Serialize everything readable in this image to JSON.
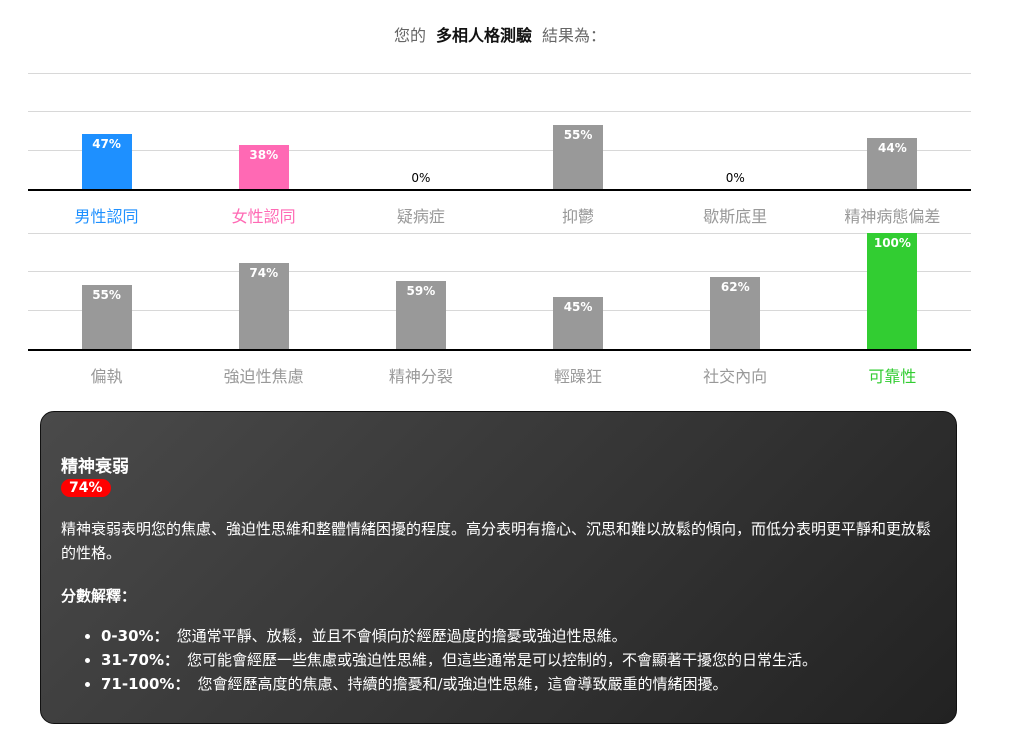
{
  "header": {
    "prefix": "您的",
    "test_name": "多相人格測驗",
    "suffix": "結果為："
  },
  "chart_data": [
    {
      "type": "bar",
      "ylim": [
        0,
        100
      ],
      "grid": true,
      "categories": [
        "男性認同",
        "女性認同",
        "疑病症",
        "抑鬱",
        "歇斯底里",
        "精神病態偏差"
      ],
      "values": [
        47,
        38,
        0,
        55,
        0,
        44
      ],
      "labels": [
        "47%",
        "38%",
        "0%",
        "55%",
        "0%",
        "44%"
      ],
      "colors": [
        "#1e90ff",
        "#ff69b4",
        "#999999",
        "#999999",
        "#999999",
        "#999999"
      ],
      "label_colors": [
        "#1e90ff",
        "#ff69b4",
        "#999999",
        "#999999",
        "#999999",
        "#999999"
      ]
    },
    {
      "type": "bar",
      "ylim": [
        0,
        100
      ],
      "grid": true,
      "categories": [
        "偏執",
        "強迫性焦慮",
        "精神分裂",
        "輕躁狂",
        "社交內向",
        "可靠性"
      ],
      "values": [
        55,
        74,
        59,
        45,
        62,
        100
      ],
      "labels": [
        "55%",
        "74%",
        "59%",
        "45%",
        "62%",
        "100%"
      ],
      "colors": [
        "#999999",
        "#999999",
        "#999999",
        "#999999",
        "#999999",
        "#32cd32"
      ],
      "label_colors": [
        "#999999",
        "#999999",
        "#999999",
        "#999999",
        "#999999",
        "#32cd32"
      ]
    }
  ],
  "detail": {
    "title": "精神衰弱",
    "score": "74%",
    "description": "精神衰弱表明您的焦慮、強迫性思維和整體情緒困擾的程度。高分表明有擔心、沉思和難以放鬆的傾向，而低分表明更平靜和更放鬆的性格。",
    "interpretation_heading": "分數解釋：",
    "ranges": [
      {
        "range": "0-30%：",
        "text": "您通常平靜、放鬆，並且不會傾向於經歷過度的擔憂或強迫性思維。"
      },
      {
        "range": "31-70%：",
        "text": "您可能會經歷一些焦慮或強迫性思維，但這些通常是可以控制的，不會顯著干擾您的日常生活。"
      },
      {
        "range": "71-100%：",
        "text": "您會經歷高度的焦慮、持續的擔憂和/或強迫性思維，這會導致嚴重的情緒困擾。"
      }
    ]
  }
}
